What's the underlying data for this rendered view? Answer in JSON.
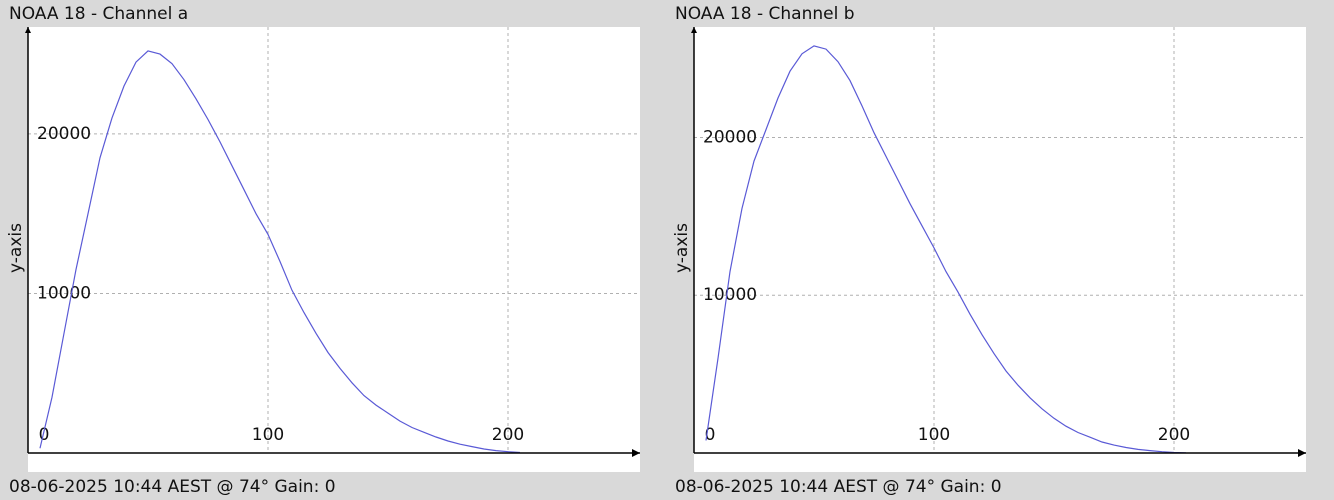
{
  "chart_data": [
    {
      "type": "line",
      "title": "NOAA 18 - Channel a",
      "ylabel": "y-axis",
      "footer": "08-06-2025 10:44 AEST @ 74° Gain: 0",
      "x": [
        5,
        10,
        15,
        20,
        25,
        30,
        35,
        40,
        45,
        50,
        55,
        60,
        65,
        70,
        75,
        80,
        85,
        90,
        95,
        100,
        105,
        110,
        115,
        120,
        125,
        130,
        135,
        140,
        145,
        150,
        155,
        160,
        165,
        170,
        175,
        180,
        185,
        190,
        195,
        200,
        205
      ],
      "color": "#5a5ad6",
      "values": [
        300,
        3500,
        7500,
        11500,
        15000,
        18500,
        21000,
        23000,
        24500,
        25200,
        25000,
        24400,
        23400,
        22200,
        20900,
        19500,
        18000,
        16500,
        15000,
        13700,
        12000,
        10200,
        8800,
        7500,
        6300,
        5300,
        4400,
        3600,
        3000,
        2500,
        2000,
        1600,
        1300,
        1000,
        750,
        550,
        400,
        250,
        150,
        80,
        30
      ],
      "xlim": [
        0,
        255
      ],
      "xticks": [
        0,
        100,
        200
      ],
      "ylim": [
        0,
        26700
      ],
      "yticks": [
        10000,
        20000
      ],
      "grid": true
    },
    {
      "type": "line",
      "title": "NOAA 18 - Channel b",
      "ylabel": "y-axis",
      "footer": "08-06-2025 10:44 AEST @ 74° Gain: 0",
      "x": [
        5,
        10,
        15,
        20,
        25,
        30,
        35,
        40,
        45,
        50,
        55,
        60,
        65,
        70,
        75,
        80,
        85,
        90,
        95,
        100,
        105,
        110,
        115,
        120,
        125,
        130,
        135,
        140,
        145,
        150,
        155,
        160,
        165,
        170,
        175,
        180,
        185,
        190,
        195,
        200,
        205
      ],
      "color": "#5a5ad6",
      "values": [
        800,
        6000,
        11500,
        15500,
        18500,
        20500,
        22500,
        24200,
        25300,
        25800,
        25600,
        24800,
        23600,
        22000,
        20300,
        18800,
        17300,
        15800,
        14400,
        13000,
        11500,
        10200,
        8800,
        7500,
        6300,
        5200,
        4300,
        3500,
        2800,
        2200,
        1700,
        1300,
        1000,
        700,
        500,
        350,
        230,
        150,
        80,
        30,
        10
      ],
      "xlim": [
        0,
        255
      ],
      "xticks": [
        0,
        100,
        200
      ],
      "ylim": [
        0,
        27000
      ],
      "yticks": [
        10000,
        20000
      ],
      "grid": true
    }
  ]
}
